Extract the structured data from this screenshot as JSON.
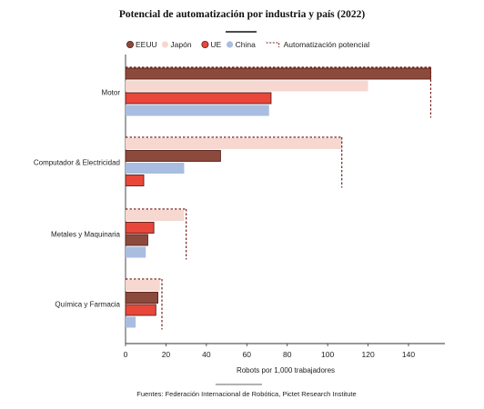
{
  "chart_data": {
    "type": "bar",
    "orientation": "horizontal",
    "title": "Potencial de automatización por industria y país (2022)",
    "categories": [
      "Motor",
      "Computador & Electricidad",
      "Metales y Maquinaria",
      "Química y Farmacia"
    ],
    "series": [
      {
        "name": "EEUU",
        "color": "#8b4a3c",
        "values": [
          151,
          47,
          11,
          16
        ]
      },
      {
        "name": "Japón",
        "color": "#f6d8d0",
        "values": [
          120,
          107,
          29,
          17
        ]
      },
      {
        "name": "UE",
        "color": "#e8473a",
        "values": [
          72,
          9,
          14,
          15
        ]
      },
      {
        "name": "China",
        "color": "#a9bde0",
        "values": [
          71,
          29,
          10,
          5
        ]
      }
    ],
    "bar_order": [
      [
        "EEUU",
        "Japón",
        "UE",
        "China"
      ],
      [
        "Japón",
        "EEUU",
        "China",
        "UE"
      ],
      [
        "Japón",
        "UE",
        "EEUU",
        "China"
      ],
      [
        "Japón",
        "EEUU",
        "UE",
        "China"
      ]
    ],
    "automation_potential": {
      "name": "Automatización potencial",
      "color": "#7a1f1f",
      "values": [
        151,
        107,
        30,
        18
      ]
    },
    "xlabel": "Robots por 1,000 trabajadores",
    "xlim": [
      0,
      158
    ],
    "xticks": [
      0,
      20,
      40,
      60,
      80,
      100,
      120,
      140
    ],
    "grid": false,
    "legend_position": "top",
    "source": "Fuentes: Federación Internacional de Robótica, Pictet Research Institute"
  }
}
